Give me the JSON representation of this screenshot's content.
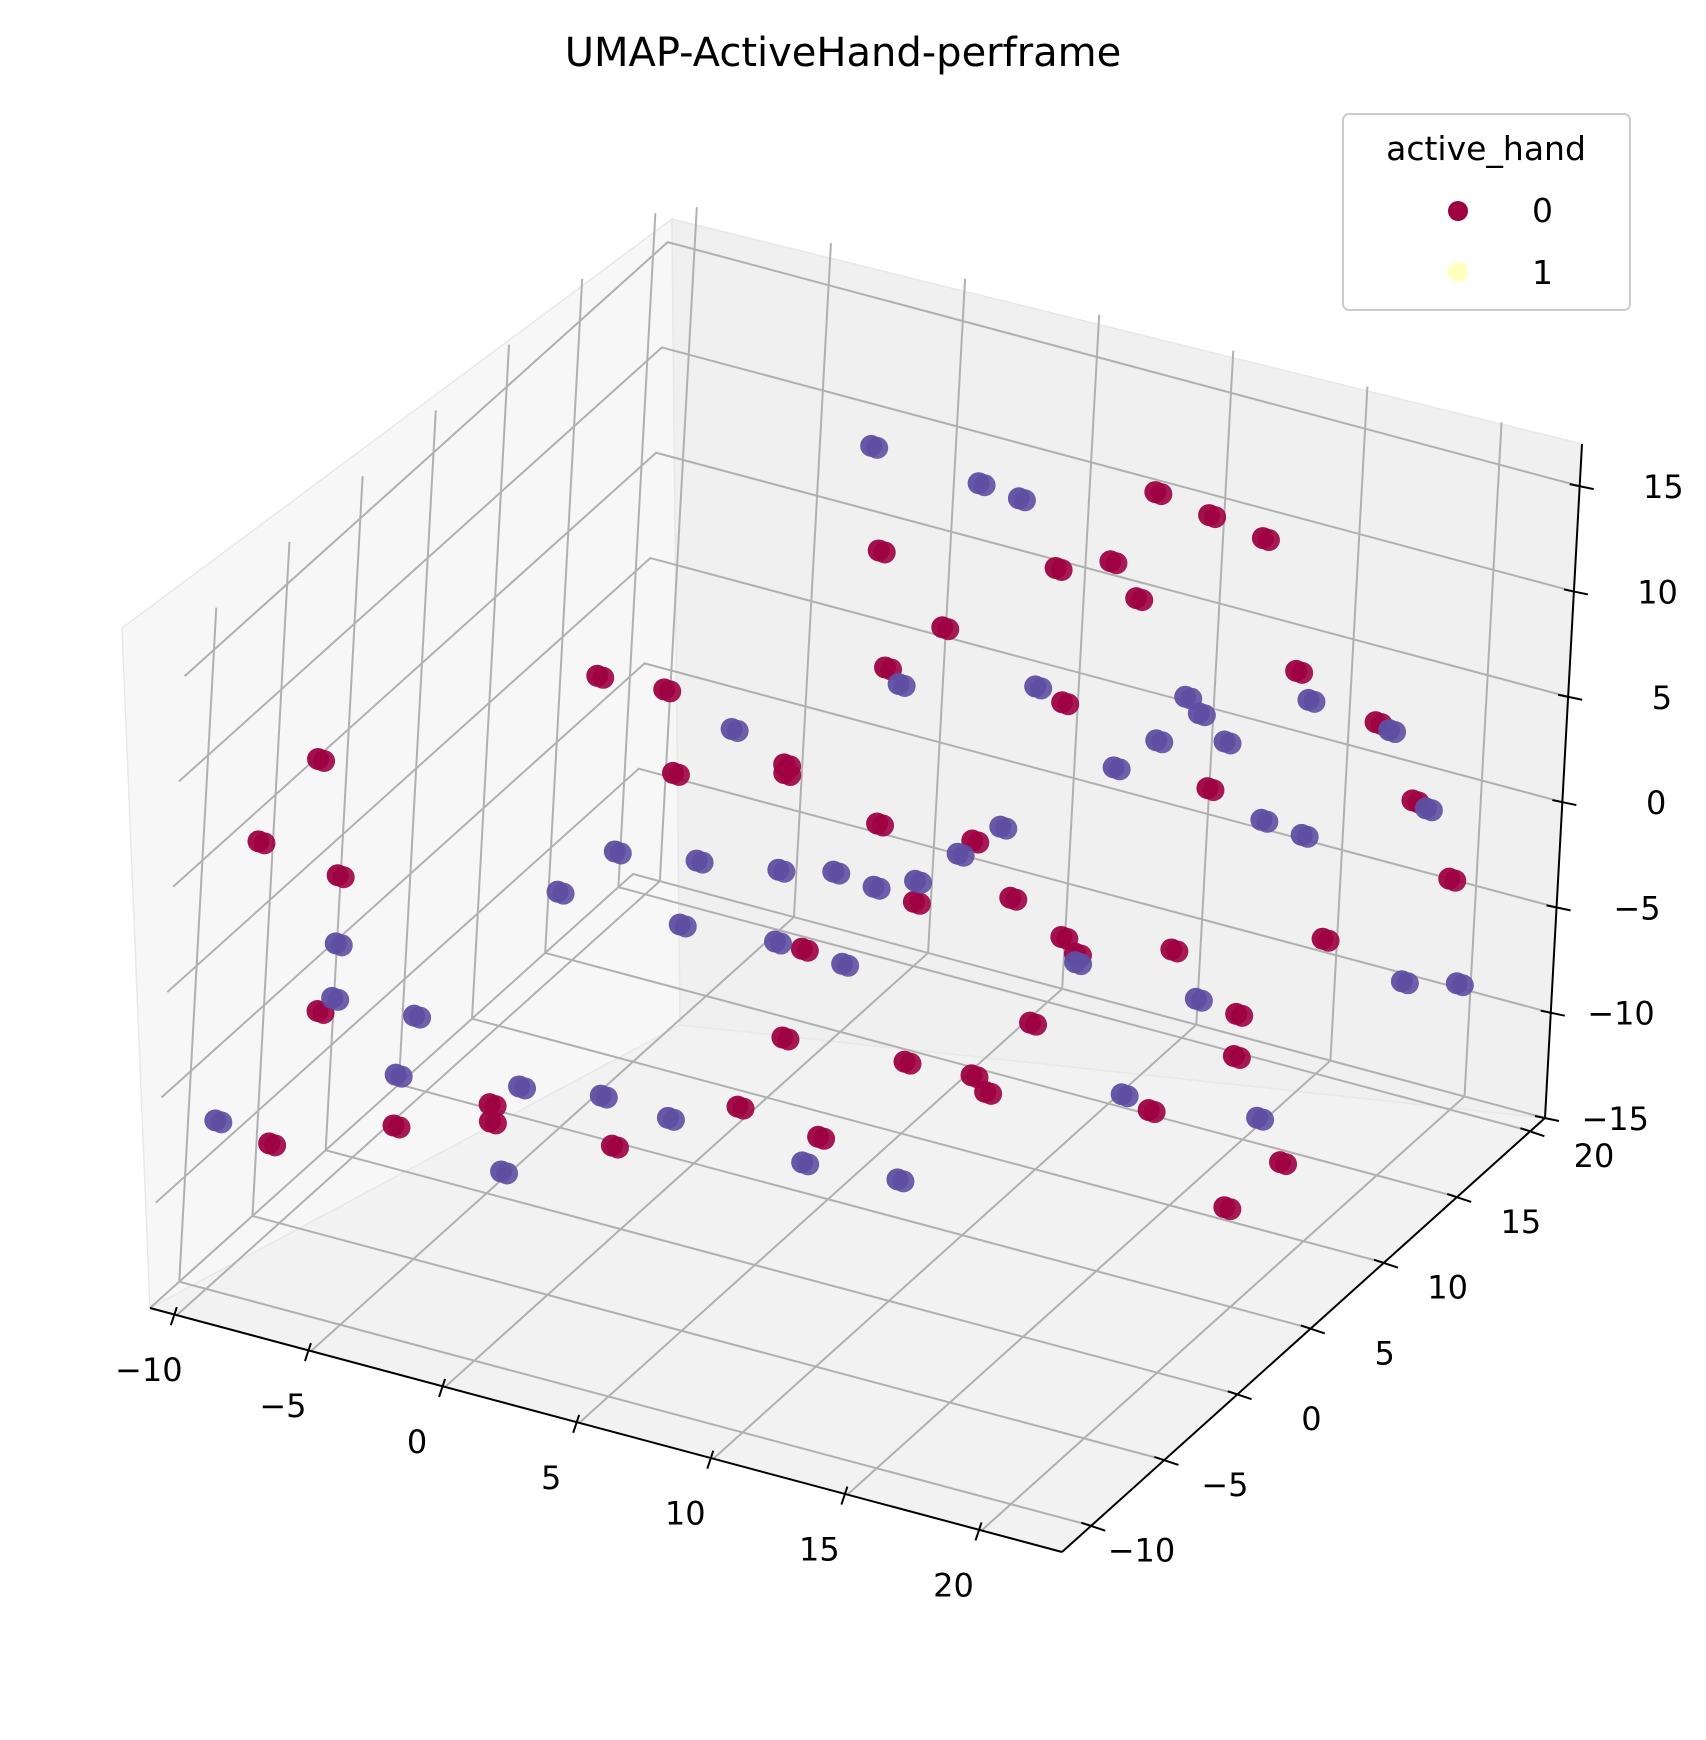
{
  "chart_data": {
    "type": "scatter",
    "title": "UMAP-ActiveHand-perframe",
    "colors": {
      "class_0": "#9e0142",
      "class_1": "#ffffbf",
      "points_drawn_blue": "#5e4fa2",
      "pane": "#f2f2f2",
      "grid": "#b0b0b0"
    },
    "legend": {
      "title": "active_hand",
      "placement": "top-right",
      "entries": [
        {
          "label": "0",
          "color": "#9e0142"
        },
        {
          "label": "1",
          "color": "#ffffbf"
        }
      ]
    },
    "axes": {
      "x": {
        "range": [
          -11,
          23
        ],
        "ticks": [
          "−10",
          "−5",
          "0",
          "5",
          "10",
          "15",
          "20"
        ]
      },
      "y": {
        "range": [
          -12,
          21
        ],
        "ticks": [
          "−10",
          "−5",
          "0",
          "5",
          "10",
          "15",
          "20"
        ]
      },
      "z": {
        "range": [
          -15,
          17
        ],
        "ticks": [
          "−15",
          "−10",
          "−5",
          "0",
          "5",
          "10",
          "15"
        ]
      }
    },
    "grid": true,
    "series": [
      {
        "color": "#9e0142",
        "points": [
          [
            -6,
            -10,
            6
          ],
          [
            -9,
            -6,
            8
          ],
          [
            -10,
            -8,
            5
          ],
          [
            -8,
            -7,
            -3
          ],
          [
            -9,
            -8,
            -9
          ],
          [
            -6,
            -5,
            -9
          ],
          [
            -2,
            -6,
            -6
          ],
          [
            -3,
            2,
            9
          ],
          [
            0,
            1,
            10
          ],
          [
            1,
            0,
            7
          ],
          [
            -4,
            -2,
            -10
          ],
          [
            -1,
            1,
            -12
          ],
          [
            2,
            4,
            -11
          ],
          [
            4,
            6,
            -13
          ],
          [
            6,
            8,
            -10
          ],
          [
            8,
            10,
            -12
          ],
          [
            9,
            11,
            -9
          ],
          [
            10,
            12,
            -6
          ],
          [
            12,
            15,
            -7
          ],
          [
            14,
            16,
            -10
          ],
          [
            3,
            5,
            -8
          ],
          [
            2,
            8,
            -6
          ],
          [
            5,
            10,
            -4
          ],
          [
            7,
            13,
            -5
          ],
          [
            6,
            12,
            -2
          ],
          [
            4,
            9,
            0
          ],
          [
            1,
            8,
            2
          ],
          [
            2,
            6,
            4
          ],
          [
            5,
            7,
            9
          ],
          [
            6,
            9,
            10
          ],
          [
            3,
            10,
            12
          ],
          [
            8,
            13,
            11
          ],
          [
            10,
            13,
            12
          ],
          [
            11,
            14,
            15
          ],
          [
            12,
            16,
            13
          ],
          [
            13,
            18,
            11
          ],
          [
            15,
            17,
            6
          ],
          [
            17,
            19,
            3
          ],
          [
            18,
            20,
            -1
          ],
          [
            19,
            21,
            -5
          ],
          [
            16,
            18,
            -7
          ],
          [
            14,
            16,
            -12
          ],
          [
            12,
            14,
            -14
          ],
          [
            16,
            12,
            -16
          ],
          [
            20,
            8,
            -10
          ],
          [
            9,
            7,
            -9
          ],
          [
            11,
            9,
            -3
          ],
          [
            13,
            15,
            1
          ],
          [
            8,
            14,
            4
          ],
          [
            10,
            15,
            9
          ]
        ]
      },
      {
        "color": "#5e4fa2",
        "points": [
          [
            -7,
            -2,
            -6
          ],
          [
            -8,
            -6,
            -3
          ],
          [
            -9,
            -4,
            -2
          ],
          [
            -10,
            -10,
            -7
          ],
          [
            -5,
            -7,
            -5
          ],
          [
            -3,
            0,
            0
          ],
          [
            -2,
            2,
            1
          ],
          [
            0,
            4,
            0
          ],
          [
            2,
            6,
            -1
          ],
          [
            3,
            8,
            -2
          ],
          [
            4,
            9,
            -3
          ],
          [
            5,
            10,
            -3
          ],
          [
            6,
            11,
            -2
          ],
          [
            7,
            12,
            -1
          ],
          [
            9,
            16,
            0
          ],
          [
            10,
            17,
            1
          ],
          [
            11,
            18,
            2
          ],
          [
            12,
            18,
            1
          ],
          [
            13,
            19,
            -3
          ],
          [
            14,
            20,
            -4
          ],
          [
            -3,
            -2,
            -8
          ],
          [
            -1,
            0,
            -9
          ],
          [
            1,
            1,
            -10
          ],
          [
            5,
            3,
            -12
          ],
          [
            7,
            6,
            -14
          ],
          [
            12,
            12,
            -12
          ],
          [
            13,
            15,
            -9
          ],
          [
            16,
            14,
            -13
          ],
          [
            19,
            18,
            -8
          ],
          [
            20,
            20,
            -9
          ],
          [
            2,
            11,
            16
          ],
          [
            5,
            13,
            14
          ],
          [
            6,
            14,
            13
          ],
          [
            0,
            6,
            5
          ],
          [
            4,
            10,
            6
          ],
          [
            8,
            12,
            6
          ],
          [
            12,
            15,
            5
          ],
          [
            15,
            18,
            4
          ],
          [
            17,
            20,
            2
          ],
          [
            18,
            21,
            -2
          ],
          [
            1,
            8,
            -6
          ],
          [
            3,
            9,
            -7
          ],
          [
            -1,
            5,
            -4
          ],
          [
            9,
            14,
            -8
          ],
          [
            -4,
            -1,
            -13
          ]
        ]
      }
    ]
  }
}
